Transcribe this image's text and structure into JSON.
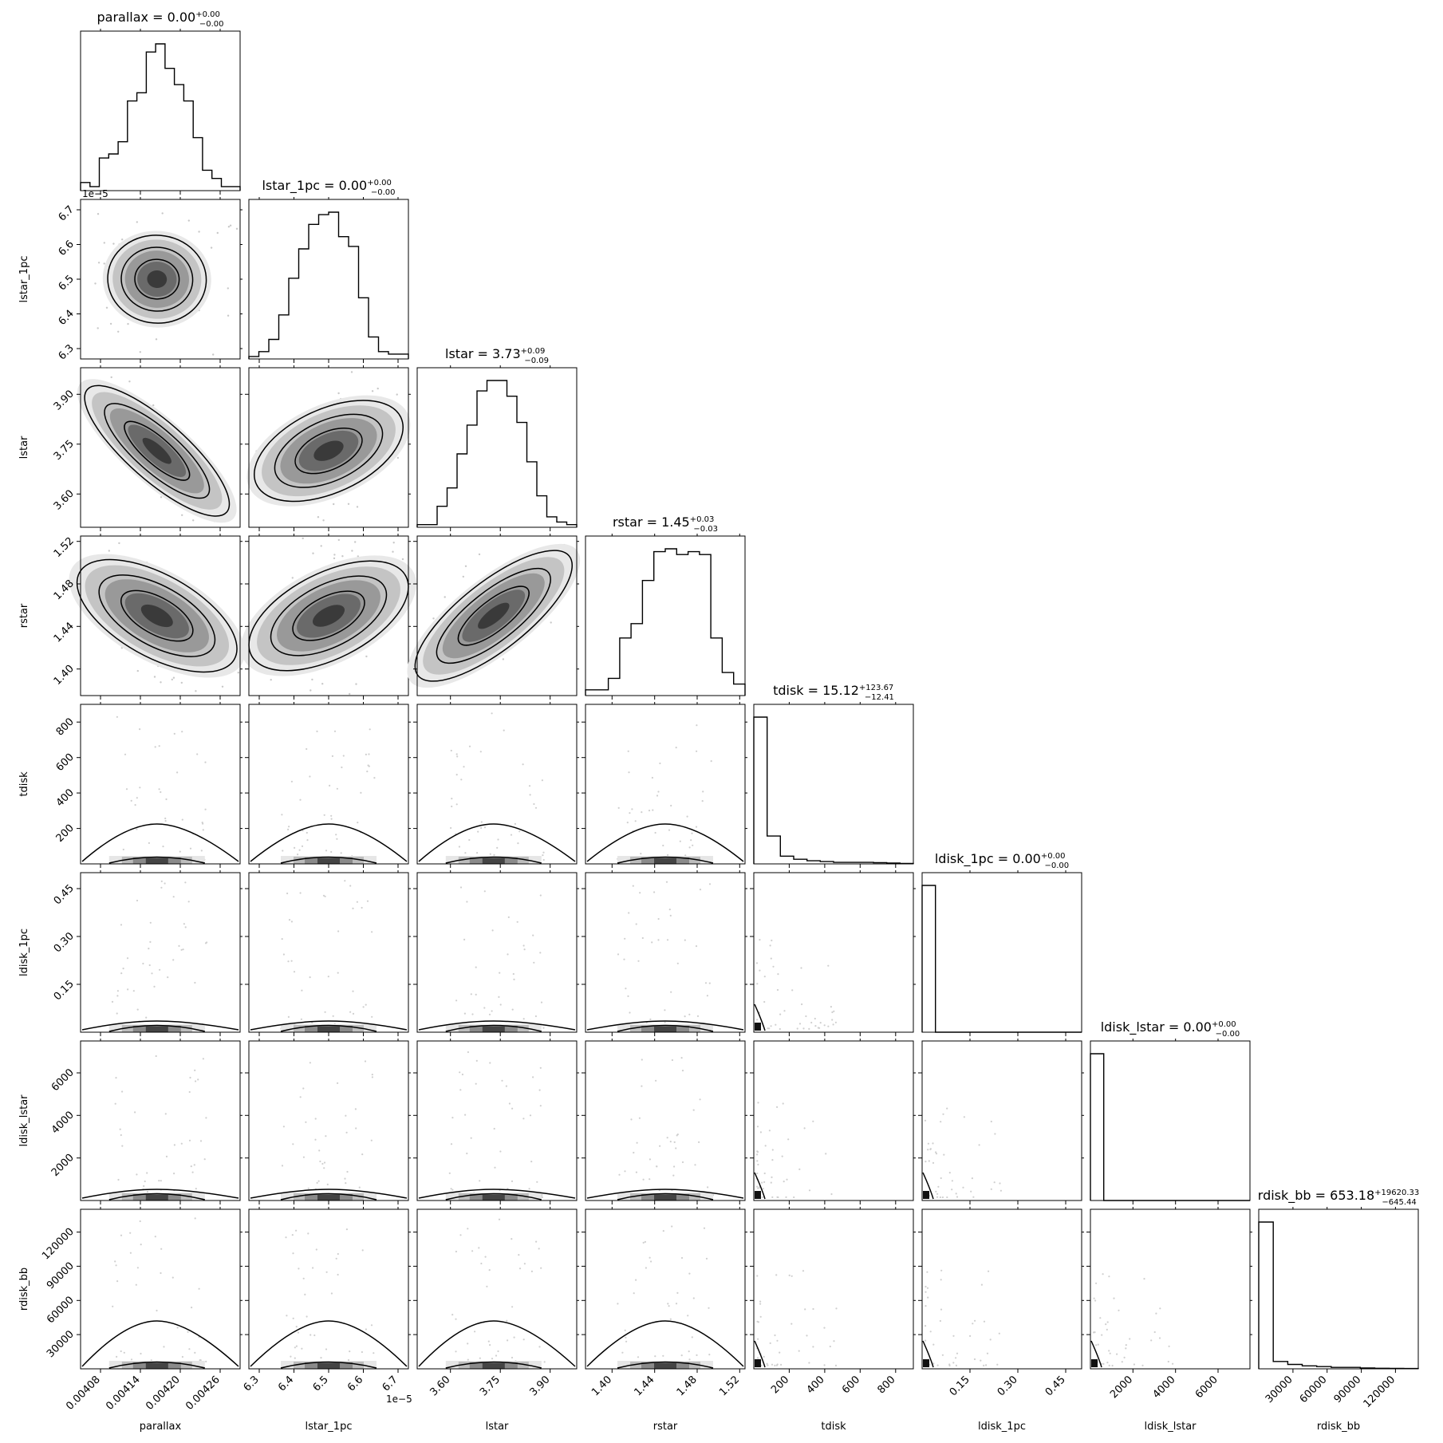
{
  "chart_data": {
    "type": "corner",
    "parameters": [
      {
        "name": "parallax",
        "title_value": "0.00",
        "title_plus": "+0.00",
        "title_minus": "−0.00",
        "median": 0.004165,
        "sigma": 3.5e-05,
        "ticks": [
          0.00408,
          0.00414,
          0.0042,
          0.00426
        ],
        "tick_labels": [
          "0.00408",
          "0.00414",
          "0.00420",
          "0.00426"
        ],
        "range": [
          0.00405,
          0.00429
        ],
        "offset_label": ""
      },
      {
        "name": "lstar_1pc",
        "title_value": "0.00",
        "title_plus": "+0.00",
        "title_minus": "−0.00",
        "median": 6.5,
        "sigma": 0.055,
        "ticks": [
          6.3,
          6.4,
          6.5,
          6.6,
          6.7
        ],
        "tick_labels": [
          "6.3",
          "6.4",
          "6.5",
          "6.6",
          "6.7"
        ],
        "range": [
          6.27,
          6.73
        ],
        "offset_label": "1e−5"
      },
      {
        "name": "lstar",
        "title_value": "3.73",
        "title_plus": "+0.09",
        "title_minus": "−0.09",
        "median": 3.73,
        "sigma": 0.09,
        "ticks": [
          3.6,
          3.75,
          3.9
        ],
        "tick_labels": [
          "3.60",
          "3.75",
          "3.90"
        ],
        "range": [
          3.5,
          3.98
        ],
        "offset_label": ""
      },
      {
        "name": "rstar",
        "title_value": "1.45",
        "title_plus": "+0.03",
        "title_minus": "−0.03",
        "median": 1.45,
        "sigma": 0.03,
        "ticks": [
          1.4,
          1.44,
          1.48,
          1.52
        ],
        "tick_labels": [
          "1.40",
          "1.44",
          "1.48",
          "1.52"
        ],
        "range": [
          1.375,
          1.525
        ],
        "offset_label": ""
      },
      {
        "name": "tdisk",
        "title_value": "15.12",
        "title_plus": "+123.67",
        "title_minus": "−12.41",
        "median": 15.12,
        "sigma": 0,
        "ticks": [
          200,
          400,
          600,
          800
        ],
        "tick_labels": [
          "200",
          "400",
          "600",
          "800"
        ],
        "range": [
          0,
          900
        ],
        "offset_label": ""
      },
      {
        "name": "ldisk_1pc",
        "title_value": "0.00",
        "title_plus": "+0.00",
        "title_minus": "−0.00",
        "median": 0,
        "sigma": 0,
        "ticks": [
          0.15,
          0.3,
          0.45
        ],
        "tick_labels": [
          "0.15",
          "0.30",
          "0.45"
        ],
        "range": [
          0,
          0.5
        ],
        "offset_label": ""
      },
      {
        "name": "ldisk_lstar",
        "title_value": "0.00",
        "title_plus": "+0.00",
        "title_minus": "−0.00",
        "median": 0,
        "sigma": 0,
        "ticks": [
          2000,
          4000,
          6000
        ],
        "tick_labels": [
          "2000",
          "4000",
          "6000"
        ],
        "range": [
          0,
          7500
        ],
        "offset_label": ""
      },
      {
        "name": "rdisk_bb",
        "title_value": "653.18",
        "title_plus": "+19620.33",
        "title_minus": "−645.44",
        "median": 653.18,
        "sigma": 0,
        "ticks": [
          30000,
          60000,
          90000,
          120000
        ],
        "tick_labels": [
          "30000",
          "60000",
          "90000",
          "120000"
        ],
        "range": [
          0,
          140000
        ],
        "offset_label": ""
      }
    ],
    "histograms_1d": [
      [
        2,
        1,
        8,
        9,
        12,
        22,
        24,
        34,
        36,
        30,
        26,
        22,
        13,
        5,
        3,
        1,
        1
      ],
      [
        1,
        3,
        8,
        18,
        33,
        45,
        55,
        59,
        60,
        50,
        46,
        25,
        9,
        3,
        2,
        2
      ],
      [
        1,
        1,
        8,
        15,
        28,
        39,
        52,
        56,
        56,
        50,
        40,
        25,
        12,
        4,
        2,
        1
      ],
      [
        2,
        2,
        6,
        20,
        25,
        40,
        50,
        51,
        49,
        50,
        49,
        20,
        8,
        4
      ],
      [
        95,
        18,
        5,
        3,
        2,
        1.5,
        1,
        1,
        1,
        0.8,
        0.5,
        0.3
      ],
      [
        100,
        0,
        0,
        0,
        0,
        0,
        0,
        0,
        0,
        0,
        0,
        0
      ],
      [
        100,
        0,
        0,
        0,
        0,
        0,
        0,
        0,
        0,
        0,
        0,
        0
      ],
      [
        100,
        5,
        3,
        2,
        1.5,
        1,
        1,
        0.6,
        0.4,
        0.3,
        0.2
      ]
    ],
    "correlations": [
      [
        0,
        1,
        -0.1
      ],
      [
        0,
        2,
        -0.92
      ],
      [
        0,
        3,
        -0.65
      ],
      [
        1,
        2,
        0.55
      ],
      [
        1,
        3,
        0.6
      ],
      [
        2,
        3,
        0.85
      ]
    ],
    "plot_type": "corner plot (posterior distributions with 2-D contours and 1-D marginal histograms)",
    "grid": false
  }
}
